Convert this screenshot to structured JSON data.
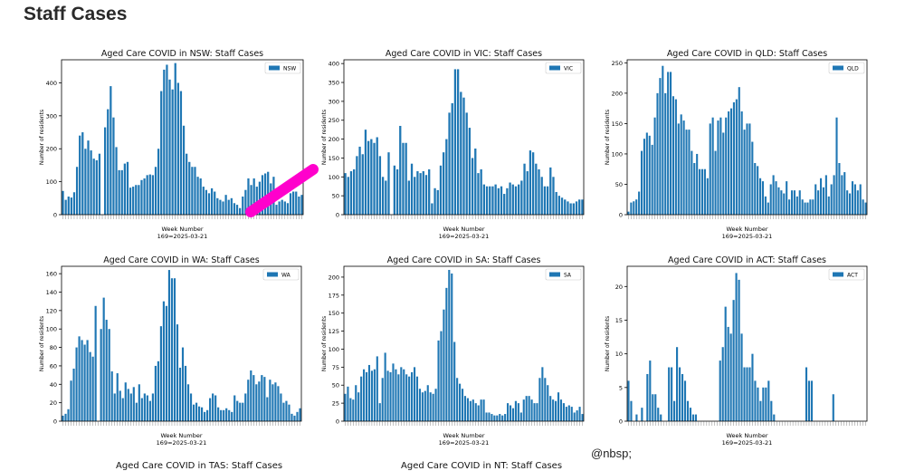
{
  "page": {
    "title": "Staff Cases",
    "credit": "@nbsp;"
  },
  "colors": {
    "bar": "#1f77b4",
    "axis": "#000000",
    "annotation": "#ff00cc"
  },
  "tail_titles": [
    "Aged Care COVID in TAS: Staff Cases",
    "Aged Care COVID in NT: Staff Cases"
  ],
  "chart_data": [
    {
      "type": "bar",
      "title": "Aged Care COVID in NSW: Staff Cases",
      "xlabel": "Week Number",
      "xlabel2": "169=2025-03-21",
      "ylabel": "Number of residents",
      "legend": "NSW",
      "legend_position": "top-right",
      "grid": false,
      "ylim": [
        0,
        470
      ],
      "yticks": [
        0,
        100,
        200,
        300,
        400
      ],
      "values": [
        72,
        45,
        55,
        52,
        68,
        145,
        240,
        250,
        200,
        225,
        195,
        170,
        165,
        185,
        0,
        265,
        320,
        390,
        295,
        205,
        135,
        135,
        155,
        160,
        82,
        85,
        90,
        90,
        105,
        110,
        120,
        122,
        120,
        145,
        200,
        375,
        440,
        455,
        410,
        380,
        460,
        400,
        375,
        270,
        185,
        160,
        145,
        145,
        115,
        110,
        85,
        75,
        65,
        80,
        70,
        50,
        45,
        40,
        60,
        45,
        50,
        35,
        30,
        20,
        55,
        75,
        110,
        90,
        110,
        85,
        100,
        120,
        125,
        130,
        95,
        115,
        30,
        40,
        45,
        40,
        35,
        65,
        70,
        70,
        55,
        60
      ]
    },
    {
      "type": "bar",
      "title": "Aged Care COVID in VIC: Staff Cases",
      "xlabel": "Week Number",
      "xlabel2": "169=2025-03-21",
      "ylabel": "Number of residents",
      "legend": "VIC",
      "legend_position": "top-right",
      "grid": false,
      "ylim": [
        0,
        410
      ],
      "yticks": [
        0,
        50,
        100,
        150,
        200,
        250,
        300,
        350,
        400
      ],
      "values": [
        110,
        100,
        115,
        120,
        155,
        180,
        160,
        225,
        195,
        200,
        190,
        205,
        155,
        100,
        90,
        165,
        0,
        130,
        120,
        235,
        190,
        190,
        90,
        135,
        100,
        115,
        110,
        115,
        105,
        120,
        30,
        70,
        65,
        130,
        165,
        200,
        270,
        295,
        385,
        385,
        325,
        310,
        270,
        230,
        150,
        175,
        110,
        120,
        80,
        75,
        75,
        75,
        80,
        70,
        75,
        55,
        70,
        85,
        80,
        75,
        80,
        90,
        135,
        115,
        170,
        165,
        135,
        120,
        100,
        75,
        75,
        125,
        100,
        60,
        50,
        45,
        40,
        35,
        30,
        30,
        35,
        40,
        40
      ]
    },
    {
      "type": "bar",
      "title": "Aged Care COVID in QLD: Staff Cases",
      "xlabel": "Week Number",
      "xlabel2": "169=2025-03-21",
      "ylabel": "Number of residents",
      "legend": "QLD",
      "legend_position": "top-right",
      "grid": false,
      "ylim": [
        0,
        255
      ],
      "yticks": [
        0,
        50,
        100,
        150,
        200,
        250
      ],
      "values": [
        5,
        20,
        22,
        25,
        38,
        105,
        125,
        135,
        130,
        115,
        160,
        200,
        225,
        245,
        200,
        235,
        235,
        195,
        190,
        150,
        165,
        155,
        140,
        140,
        105,
        85,
        100,
        75,
        75,
        75,
        60,
        150,
        160,
        105,
        155,
        160,
        135,
        160,
        170,
        175,
        185,
        190,
        210,
        170,
        140,
        150,
        150,
        120,
        85,
        80,
        60,
        55,
        30,
        20,
        50,
        65,
        55,
        45,
        40,
        35,
        55,
        25,
        40,
        40,
        30,
        40,
        25,
        20,
        20,
        25,
        25,
        50,
        40,
        60,
        45,
        65,
        30,
        50,
        65,
        160,
        85,
        65,
        70,
        40,
        35,
        55,
        50,
        40,
        50,
        25,
        20
      ]
    },
    {
      "type": "bar",
      "title": "Aged Care COVID in WA: Staff Cases",
      "xlabel": "Week Number",
      "xlabel2": "169=2025-03-21",
      "ylabel": "Number of residents",
      "legend": "WA",
      "legend_position": "top-right",
      "grid": false,
      "ylim": [
        0,
        168
      ],
      "yticks": [
        0,
        20,
        40,
        60,
        80,
        100,
        120,
        140,
        160
      ],
      "values": [
        6,
        8,
        13,
        44,
        57,
        80,
        92,
        88,
        83,
        88,
        75,
        70,
        125,
        0,
        100,
        134,
        110,
        100,
        54,
        30,
        52,
        33,
        25,
        42,
        35,
        30,
        37,
        20,
        40,
        25,
        30,
        28,
        22,
        30,
        60,
        65,
        103,
        130,
        125,
        164,
        155,
        155,
        105,
        58,
        80,
        60,
        40,
        30,
        18,
        20,
        16,
        15,
        10,
        12,
        25,
        30,
        28,
        15,
        12,
        12,
        14,
        12,
        10,
        28,
        22,
        20,
        20,
        30,
        45,
        55,
        50,
        40,
        43,
        50,
        48,
        26,
        45,
        40,
        42,
        38,
        30,
        20,
        22,
        18,
        8,
        6,
        10,
        14
      ]
    },
    {
      "type": "bar",
      "title": "Aged Care COVID in SA: Staff Cases",
      "xlabel": "Week Number",
      "xlabel2": "169=2025-03-21",
      "ylabel": "Number of residents",
      "legend": "SA",
      "legend_position": "top-right",
      "grid": false,
      "ylim": [
        0,
        215
      ],
      "yticks": [
        0,
        25,
        50,
        75,
        100,
        125,
        150,
        175,
        200
      ],
      "values": [
        38,
        48,
        32,
        30,
        50,
        40,
        62,
        72,
        68,
        78,
        70,
        72,
        90,
        25,
        60,
        95,
        70,
        68,
        80,
        72,
        65,
        75,
        72,
        65,
        62,
        68,
        75,
        62,
        45,
        40,
        42,
        50,
        40,
        38,
        45,
        112,
        125,
        155,
        185,
        210,
        205,
        110,
        60,
        52,
        45,
        35,
        32,
        28,
        30,
        25,
        22,
        30,
        30,
        12,
        12,
        10,
        8,
        8,
        10,
        8,
        10,
        25,
        22,
        18,
        28,
        25,
        12,
        30,
        35,
        35,
        30,
        25,
        25,
        60,
        75,
        60,
        50,
        35,
        30,
        28,
        40,
        30,
        25,
        20,
        22,
        20,
        12,
        15,
        20,
        10
      ]
    },
    {
      "type": "bar",
      "title": "Aged Care COVID in ACT: Staff Cases",
      "xlabel": "Week Number",
      "xlabel2": "169=2025-03-21",
      "ylabel": "Number of residents",
      "legend": "ACT",
      "legend_position": "top-right",
      "grid": false,
      "ylim": [
        0,
        23
      ],
      "yticks": [
        0,
        5,
        10,
        15,
        20
      ],
      "values": [
        6,
        3,
        0,
        1,
        0,
        2,
        0,
        7,
        9,
        4,
        4,
        2,
        1,
        0,
        0,
        8,
        8,
        3,
        11,
        8,
        7,
        6,
        3,
        2,
        1,
        1,
        0,
        0,
        0,
        0,
        0,
        0,
        0,
        0,
        9,
        11,
        17,
        14,
        13,
        18,
        22,
        21,
        13,
        8,
        8,
        8,
        10,
        6,
        5,
        3,
        5,
        5,
        6,
        3,
        1,
        0,
        0,
        0,
        0,
        0,
        0,
        0,
        0,
        0,
        0,
        0,
        8,
        6,
        6,
        0,
        0,
        0,
        0,
        0,
        0,
        0,
        4,
        0,
        0,
        0,
        0,
        0,
        0,
        0,
        0,
        0,
        0,
        0,
        0
      ]
    }
  ]
}
